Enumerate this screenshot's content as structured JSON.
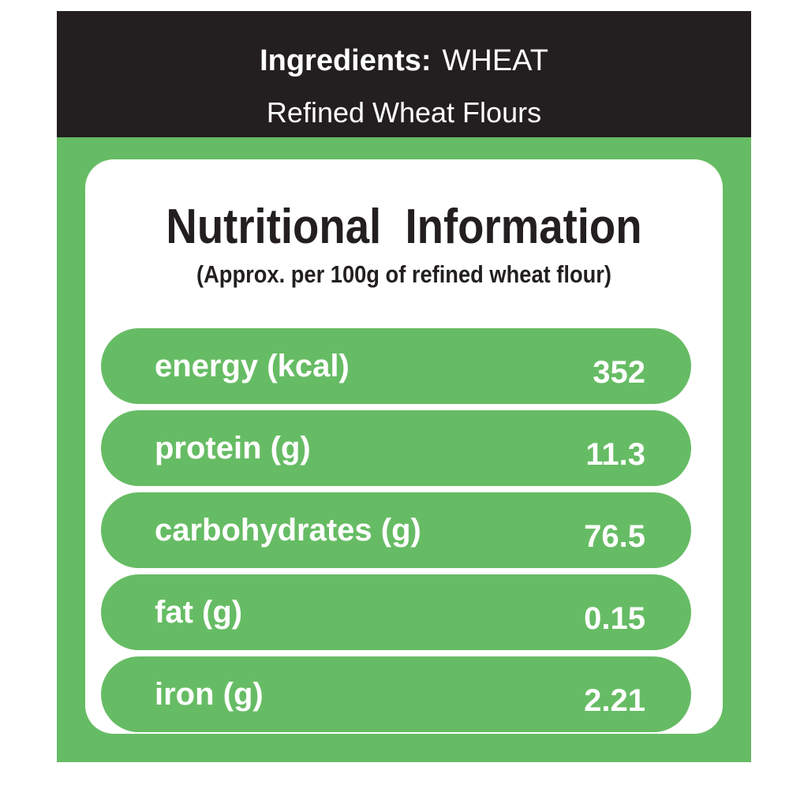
{
  "header": {
    "label": "Ingredients:",
    "ingredient": "WHEAT",
    "subtitle": "Refined Wheat Flours"
  },
  "panel": {
    "title": "Nutritional  Information",
    "subtitle": "(Approx. per 100g of refined wheat flour)"
  },
  "table": {
    "rows": [
      [
        "energy (kcal)",
        "352"
      ],
      [
        "protein (g)",
        "11.3"
      ],
      [
        "carbohydrates (g)",
        "76.5"
      ],
      [
        "fat (g)",
        "0.15"
      ],
      [
        "iron (g)",
        "2.21"
      ]
    ]
  }
}
